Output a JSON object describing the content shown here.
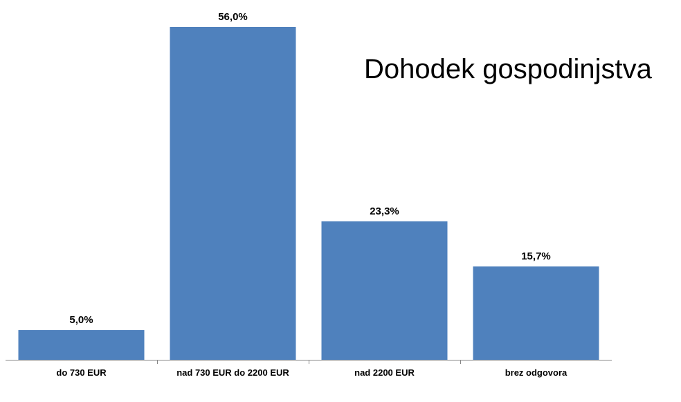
{
  "chart_data": {
    "type": "bar",
    "title": "Dohodek gospodinjstva",
    "categories": [
      "do 730 EUR",
      "nad 730 EUR do 2200 EUR",
      "nad 2200 EUR",
      "brez odgovora"
    ],
    "values": [
      5.0,
      56.0,
      23.3,
      15.7
    ],
    "value_labels": [
      "5,0%",
      "56,0%",
      "23,3%",
      "15,7%"
    ],
    "unit": "%",
    "ylim": [
      0,
      56
    ],
    "grid": false,
    "legend": "none",
    "bar_color": "#4F81BD",
    "axis_color": "#868686"
  }
}
